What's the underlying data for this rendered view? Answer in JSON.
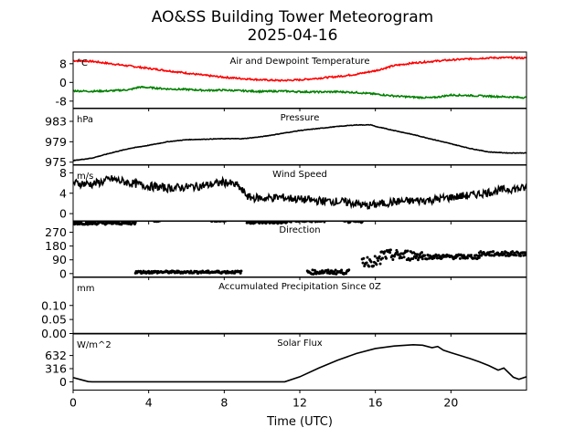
{
  "figure": {
    "title_line1": "AO&SS Building Tower Meteorogram",
    "title_line2": "2025-04-16",
    "xlabel": "Time (UTC)",
    "xticks": [
      0,
      4,
      8,
      12,
      16,
      20
    ],
    "xlim": [
      0,
      24
    ]
  },
  "chart_data": [
    {
      "type": "line",
      "title": "Air and Dewpoint Temperature",
      "unit": "°C",
      "ylim": [
        -11,
        13
      ],
      "yticks": [
        8,
        0,
        -8
      ],
      "series": [
        {
          "color": "#ff0000",
          "x": [
            0,
            1,
            2,
            3,
            4,
            5,
            6,
            7,
            8,
            9,
            10,
            11,
            12,
            13,
            14,
            15,
            16,
            17,
            18,
            19,
            20,
            21,
            22,
            23,
            24
          ],
          "y": [
            9.3,
            9.0,
            8.0,
            7.0,
            6.0,
            5.0,
            4.0,
            3.0,
            2.2,
            1.6,
            1.1,
            0.8,
            1.1,
            1.8,
            2.5,
            3.5,
            5.0,
            7.2,
            8.3,
            9.0,
            9.6,
            10.1,
            10.5,
            10.6,
            10.4
          ]
        },
        {
          "color": "#008000",
          "x": [
            0,
            1,
            2,
            3,
            3.5,
            4,
            5,
            6,
            7,
            8,
            9,
            10,
            11,
            12,
            13,
            14,
            15,
            16,
            16.5,
            17,
            18,
            19,
            20,
            21,
            22,
            23,
            24
          ],
          "y": [
            -3.6,
            -3.8,
            -3.6,
            -3.1,
            -2.0,
            -2.2,
            -2.8,
            -3.0,
            -3.4,
            -3.3,
            -3.6,
            -3.9,
            -3.7,
            -4.0,
            -4.1,
            -4.0,
            -4.3,
            -5.0,
            -5.4,
            -5.8,
            -6.3,
            -6.6,
            -5.4,
            -5.6,
            -5.9,
            -6.2,
            -6.5
          ]
        }
      ]
    },
    {
      "type": "line",
      "title": "Pressure",
      "unit": "hPa",
      "ylim": [
        974.5,
        985.5
      ],
      "yticks": [
        983,
        979,
        975
      ],
      "series": [
        {
          "color": "#000000",
          "x": [
            0,
            1,
            2,
            3,
            4,
            5,
            6,
            7,
            8,
            9,
            10,
            11,
            12,
            13,
            14,
            15,
            15.8,
            16,
            17,
            18,
            19,
            20,
            21,
            22,
            23,
            24
          ],
          "y": [
            975.3,
            975.8,
            976.8,
            977.7,
            978.3,
            979.0,
            979.4,
            979.5,
            979.6,
            979.6,
            980.0,
            980.6,
            981.2,
            981.6,
            982.0,
            982.3,
            982.3,
            982.0,
            981.2,
            980.4,
            979.5,
            978.6,
            977.7,
            977.0,
            976.8,
            976.8
          ]
        }
      ]
    },
    {
      "type": "line",
      "title": "Wind Speed",
      "unit": "m/s",
      "ylim": [
        -1.5,
        9.5
      ],
      "yticks": [
        8,
        4,
        0
      ],
      "series": [
        {
          "color": "#000000",
          "x": [
            0,
            1,
            1.5,
            2,
            3,
            4,
            5,
            6,
            7,
            8,
            8.7,
            9.3,
            10,
            11,
            12,
            13,
            14,
            15,
            15.5,
            16,
            17,
            18,
            19,
            20,
            21,
            22,
            23,
            24
          ],
          "y": [
            6.0,
            5.8,
            6.2,
            6.8,
            6.0,
            5.4,
            5.0,
            5.2,
            5.5,
            6.2,
            5.5,
            3.2,
            3.0,
            3.2,
            2.8,
            2.5,
            2.4,
            2.0,
            1.5,
            1.8,
            2.3,
            2.5,
            2.7,
            3.2,
            3.6,
            4.2,
            4.8,
            5.0
          ]
        }
      ]
    },
    {
      "type": "scatter",
      "title": "Direction",
      "unit": "",
      "ylim": [
        -22,
        345
      ],
      "yticks": [
        270,
        180,
        90,
        0
      ],
      "series": [
        {
          "color": "#000000",
          "segments": [
            {
              "x0": 0.0,
              "x1": 3.3,
              "y": 330,
              "jitter": 9
            },
            {
              "x0": 4.3,
              "x1": 4.6,
              "y": 345,
              "jitter": 5
            },
            {
              "x0": 7.3,
              "x1": 8.1,
              "y": 345,
              "jitter": 4
            },
            {
              "x0": 9.2,
              "x1": 11.3,
              "y": 335,
              "jitter": 8
            },
            {
              "x0": 11.3,
              "x1": 13.3,
              "y": 345,
              "jitter": 8
            },
            {
              "x0": 14.3,
              "x1": 15.3,
              "y": 340,
              "jitter": 8
            },
            {
              "x0": 3.3,
              "x1": 8.9,
              "y": 10,
              "jitter": 8
            },
            {
              "x0": 12.4,
              "x1": 14.6,
              "y": 10,
              "jitter": 14
            },
            {
              "x0": 15.3,
              "x1": 16.3,
              "y": 80,
              "jitter": 35
            },
            {
              "x0": 16.3,
              "x1": 18.5,
              "y": 120,
              "jitter": 35
            },
            {
              "x0": 18.5,
              "x1": 21.5,
              "y": 110,
              "jitter": 15
            },
            {
              "x0": 21.5,
              "x1": 24.0,
              "y": 130,
              "jitter": 15
            }
          ]
        }
      ]
    },
    {
      "type": "line",
      "title": "Accumulated Precipitation Since 0Z",
      "unit": "mm",
      "ylim": [
        0,
        0.2
      ],
      "yticks": [
        "0.10",
        "0.05",
        "0.00"
      ],
      "series": [
        {
          "color": "#000000",
          "x": [
            0,
            24
          ],
          "y": [
            0,
            0
          ]
        }
      ]
    },
    {
      "type": "line",
      "title": "Solar Flux",
      "unit": "W/m^2",
      "ylim": [
        -200,
        1150
      ],
      "yticks": [
        632,
        316,
        0
      ],
      "series": [
        {
          "color": "#000000",
          "x": [
            0,
            0.5,
            0.8,
            1,
            2,
            4,
            6,
            8,
            10,
            11.2,
            12,
            13,
            14,
            15,
            16,
            17,
            18,
            18.5,
            19,
            19.3,
            19.6,
            20,
            21,
            21.5,
            22,
            22.5,
            22.8,
            23.3,
            23.6,
            24
          ],
          "y": [
            100,
            40,
            5,
            0,
            0,
            0,
            0,
            0,
            0,
            0,
            120,
            330,
            520,
            680,
            800,
            860,
            890,
            880,
            820,
            850,
            760,
            700,
            560,
            480,
            390,
            280,
            330,
            110,
            60,
            120
          ]
        }
      ]
    }
  ]
}
